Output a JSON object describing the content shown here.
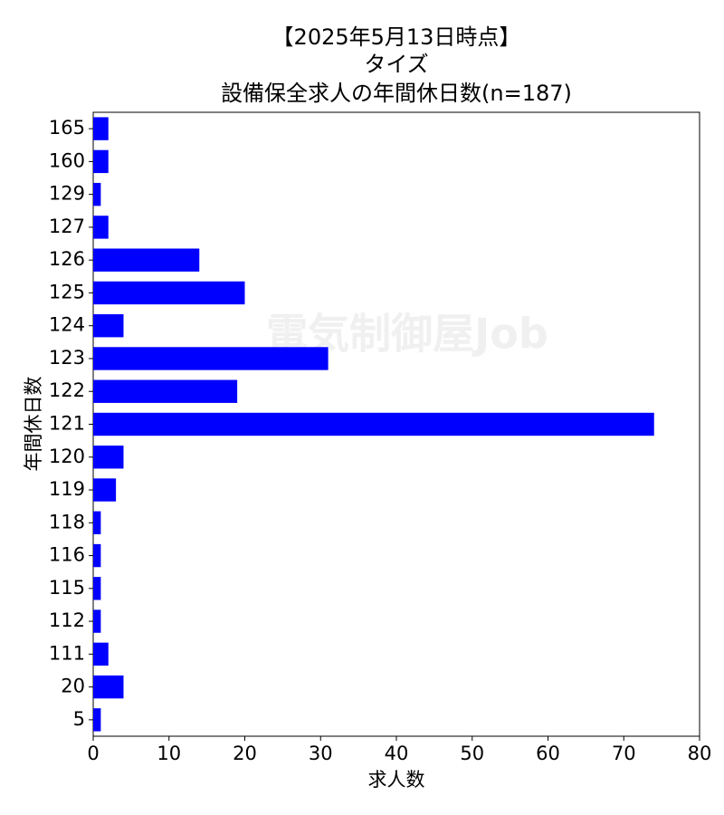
{
  "chart_data": {
    "type": "barh",
    "title": [
      "【2025年5月13日時点】",
      "タイズ",
      "設備保全求人の年間休日数(n=187)"
    ],
    "watermark": "電気制御屋Job",
    "xlabel": "求人数",
    "ylabel": "年間休日数",
    "categories": [
      "165",
      "160",
      "129",
      "127",
      "126",
      "125",
      "124",
      "123",
      "122",
      "121",
      "120",
      "119",
      "118",
      "116",
      "115",
      "112",
      "111",
      "20",
      "5"
    ],
    "values": [
      2,
      2,
      1,
      2,
      14,
      20,
      4,
      31,
      19,
      74,
      4,
      3,
      1,
      1,
      1,
      1,
      2,
      4,
      1
    ],
    "color": "#0000ff",
    "xlim": [
      0,
      80
    ],
    "xticks": [
      0,
      10,
      20,
      30,
      40,
      50,
      60,
      70,
      80
    ]
  }
}
